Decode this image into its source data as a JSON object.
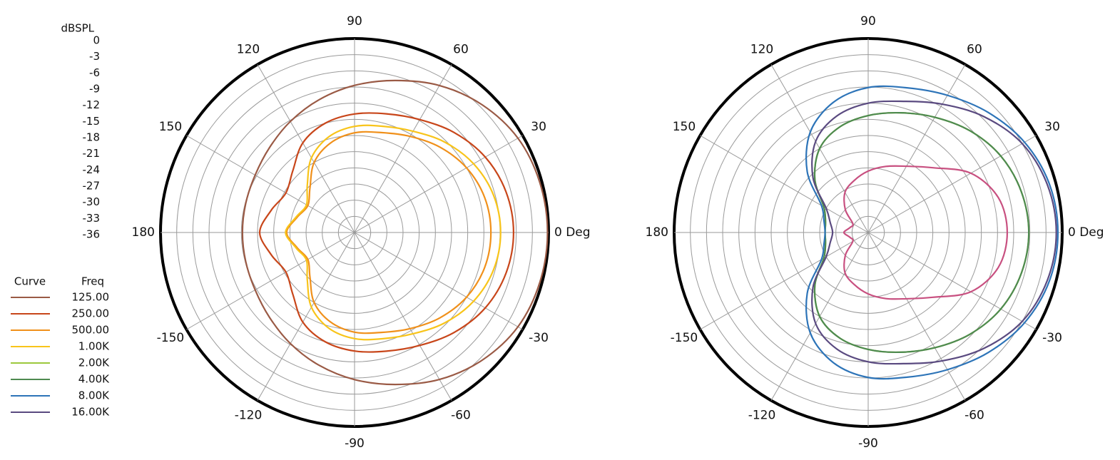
{
  "chart_data": [
    {
      "type": "polar",
      "r_label": "dBSPL",
      "legend_title": [
        "Curve",
        "Freq"
      ],
      "rlim": [
        -36,
        0
      ],
      "rticks": [
        0,
        -3,
        -6,
        -9,
        -12,
        -15,
        -18,
        -21,
        -24,
        -27,
        -30,
        -33,
        -36
      ],
      "thetaticks": [
        {
          "value": 0,
          "label": "0 Deg"
        },
        30,
        60,
        90,
        120,
        150,
        180,
        -150,
        -120,
        -90,
        -60,
        -30
      ],
      "theta": [
        0,
        15,
        30,
        45,
        60,
        75,
        90,
        105,
        120,
        135,
        150,
        165,
        180,
        195,
        210,
        225,
        240,
        255,
        270,
        285,
        300,
        315,
        330,
        345
      ],
      "series": [
        {
          "name": "125.00",
          "color": "#9a5a45",
          "values": [
            -0.2,
            -0.4,
            -1,
            -2.5,
            -4.5,
            -6.8,
            -8.7,
            -10.5,
            -12.2,
            -13.7,
            -14.7,
            -15.1,
            -15.2,
            -15.1,
            -14.7,
            -13.7,
            -12.2,
            -10.5,
            -8.7,
            -6.8,
            -4.5,
            -2.5,
            -1,
            -0.4
          ]
        },
        {
          "name": "250.00",
          "color": "#c8461a",
          "values": [
            -6.5,
            -6.9,
            -8,
            -9.8,
            -11.8,
            -13.2,
            -14,
            -15,
            -16.8,
            -19.8,
            -21.3,
            -20,
            -18.4,
            -20,
            -21.3,
            -19.8,
            -16.8,
            -15,
            -14,
            -13.2,
            -11.8,
            -9.8,
            -8,
            -6.9
          ]
        },
        {
          "name": "500.00",
          "color": "#f0901a",
          "values": [
            -10.7,
            -11,
            -12,
            -13.6,
            -15.4,
            -16.8,
            -17.5,
            -18.8,
            -21,
            -24.3,
            -26,
            -25,
            -23.4,
            -25,
            -26,
            -24.3,
            -21,
            -18.8,
            -17.5,
            -16.8,
            -15.4,
            -13.6,
            -12,
            -11
          ]
        },
        {
          "name": "1.00K",
          "color": "#f8c41a",
          "values": [
            -8.9,
            -9.3,
            -10.5,
            -12.3,
            -14.3,
            -15.6,
            -16.3,
            -17.6,
            -20,
            -23.6,
            -25.7,
            -24.8,
            -23.2,
            -24.8,
            -25.7,
            -23.6,
            -20,
            -17.6,
            -16.3,
            -15.6,
            -14.3,
            -12.3,
            -10.5,
            -9.3
          ]
        }
      ]
    },
    {
      "type": "polar",
      "rlim": [
        -36,
        0
      ],
      "rticks": [
        0,
        -3,
        -6,
        -9,
        -12,
        -15,
        -18,
        -21,
        -24,
        -27,
        -30,
        -33,
        -36
      ],
      "thetaticks": [
        {
          "value": 0,
          "label": "0 Deg"
        },
        30,
        60,
        90,
        120,
        150,
        180,
        -150,
        -120,
        -90,
        -60,
        -30
      ],
      "theta": [
        0,
        15,
        30,
        45,
        60,
        75,
        90,
        105,
        120,
        135,
        150,
        165,
        180,
        195,
        210,
        225,
        240,
        255,
        270,
        285,
        300,
        315,
        330,
        345
      ],
      "series": [
        {
          "name": "2.00K",
          "color": "#9cc83c",
          "values": [
            -6.2,
            -6.6,
            -7.6,
            -9.3,
            -11.3,
            -13,
            -14.3,
            -15.7,
            -18,
            -22,
            -26.5,
            -27.8,
            -28,
            -27.8,
            -26.5,
            -22,
            -18,
            -15.7,
            -14.3,
            -13,
            -11.3,
            -9.3,
            -7.6,
            -6.6
          ]
        },
        {
          "name": "4.00K",
          "color": "#4e8a50",
          "values": [
            -6.2,
            -6.6,
            -7.6,
            -9.3,
            -11.3,
            -13,
            -14.3,
            -15.7,
            -18,
            -22,
            -26.5,
            -27.8,
            -28,
            -27.8,
            -26.5,
            -22,
            -18,
            -15.7,
            -14.3,
            -13,
            -11.3,
            -9.3,
            -7.6,
            -6.6
          ]
        },
        {
          "name": "8.00K",
          "color": "#2d74b8",
          "values": [
            -0.8,
            -1.2,
            -2.5,
            -4.5,
            -6.6,
            -8.2,
            -9.1,
            -11,
            -14.5,
            -20,
            -26,
            -27.5,
            -28,
            -27.5,
            -26,
            -20,
            -14.5,
            -11,
            -9.1,
            -8.2,
            -6.6,
            -4.5,
            -2.5,
            -1.2
          ]
        },
        {
          "name": "16.00K",
          "color": "#5a4a80",
          "values": [
            -1.1,
            -1.6,
            -3,
            -5.6,
            -8.5,
            -10.8,
            -12,
            -13.6,
            -16.5,
            -21.5,
            -27,
            -28.7,
            -29.4,
            -28.7,
            -27,
            -21.5,
            -16.5,
            -13.6,
            -12,
            -10.8,
            -8.5,
            -5.6,
            -3,
            -1.6
          ]
        },
        {
          "color": "#c85080",
          "values": [
            -10.2,
            -11,
            -14,
            -19,
            -21.8,
            -23.3,
            -24.6,
            -26,
            -27.4,
            -30,
            -32.7,
            -32.5,
            -31.5,
            -32.5,
            -32.7,
            -30,
            -27.4,
            -26,
            -24.6,
            -23.3,
            -21.8,
            -19,
            -14,
            -11
          ]
        }
      ]
    }
  ]
}
